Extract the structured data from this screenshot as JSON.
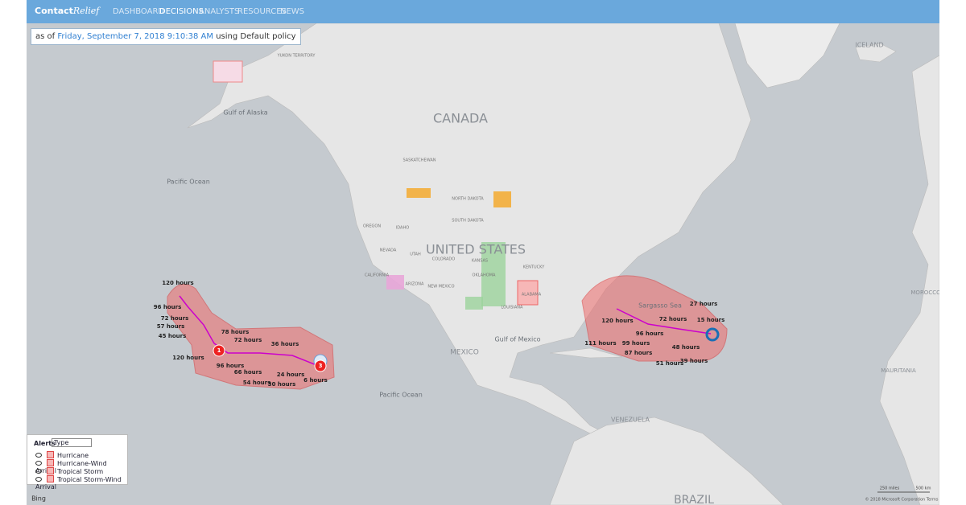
{
  "nav": {
    "brand": "Contact",
    "brand_script": "Relief",
    "items": [
      "DASHBOARD",
      "DECISIONS",
      "ANALYSTS",
      "RESOURCES",
      "NEWS"
    ]
  },
  "status": {
    "prefix": "as of",
    "timestamp": "Friday, September 7, 2018 9:10:38 AM",
    "suffix": "using Default policy"
  },
  "map": {
    "regions": [
      "CANADA",
      "UNITED STATES",
      "MEXICO",
      "ICELAND",
      "VENEZUELA",
      "BRAZIL",
      "MAURITANIA",
      "MOROCCO"
    ],
    "waters": [
      "Pacific Ocean",
      "Pacific Ocean",
      "Gulf of Alaska",
      "Gulf of Mexico",
      "Sargasso Sea"
    ],
    "states": [
      "OREGON",
      "IDAHO",
      "NEVADA",
      "UTAH",
      "CALIFORNIA",
      "ARIZONA",
      "COLORADO",
      "KANSAS",
      "OKLAHOMA",
      "NEW MEXICO",
      "NORTH DAKOTA",
      "SOUTH DAKOTA",
      "KENTUCKY",
      "ALABAMA",
      "LOUISIANA",
      "YUKON TERRITORY",
      "SASKATCHEWAN"
    ],
    "storm_west": {
      "markers": [
        "1",
        "3"
      ],
      "hours": [
        "120 hours",
        "96 hours",
        "72 hours",
        "57 hours",
        "45 hours",
        "120 hours",
        "78 hours",
        "72 hours",
        "36 hours",
        "96 hours",
        "66 hours",
        "24 hours",
        "54 hours",
        "30 hours",
        "6 hours"
      ]
    },
    "storm_east": {
      "hours": [
        "27 hours",
        "15 hours",
        "72 hours",
        "120 hours",
        "96 hours",
        "111 hours",
        "99 hours",
        "48 hours",
        "87 hours",
        "51 hours",
        "39 hours"
      ]
    },
    "scale": [
      "250 miles",
      "500 km"
    ],
    "attribution": "© 2018 Microsoft Corporation  Terms",
    "provider": "Bing"
  },
  "legend": {
    "title": "Alerts",
    "select": "Type",
    "items": [
      "Hurricane",
      "Hurricane-Wind Arrival",
      "Tropical Storm",
      "Tropical Storm-Wind Arrival"
    ]
  }
}
